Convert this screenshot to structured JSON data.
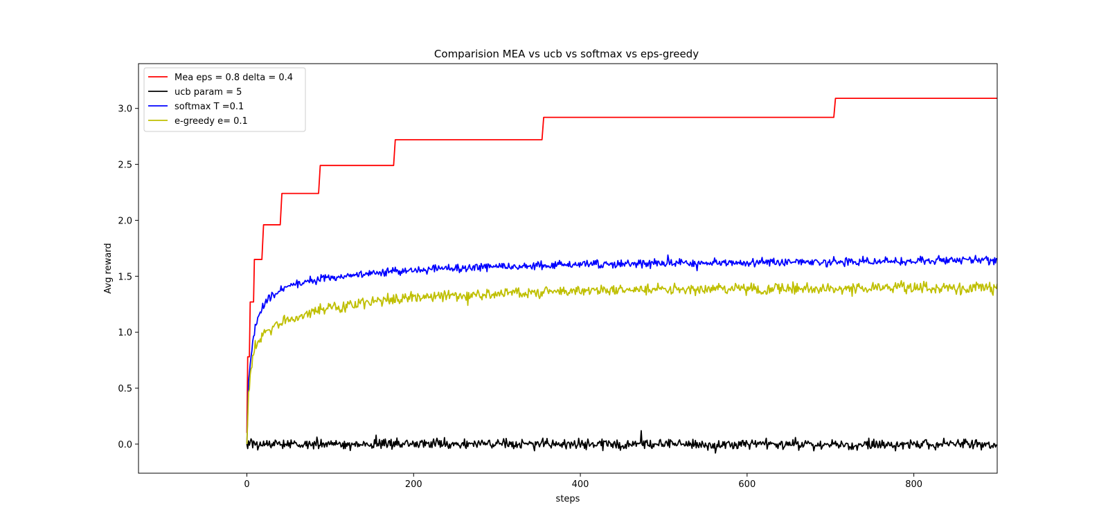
{
  "chart_data": {
    "type": "line",
    "title": "Comparision MEA vs ucb vs softmax vs eps-greedy",
    "xlabel": "steps",
    "ylabel": "Avg reward",
    "xlim": [
      -130,
      900
    ],
    "ylim": [
      -0.26,
      3.4
    ],
    "xticks": [
      0,
      200,
      400,
      600,
      800
    ],
    "xtick_labels": [
      "0",
      "200",
      "400",
      "600",
      "800"
    ],
    "yticks": [
      0.0,
      0.5,
      1.0,
      1.5,
      2.0,
      2.5,
      3.0
    ],
    "ytick_labels": [
      "0.0",
      "0.5",
      "1.0",
      "1.5",
      "2.0",
      "2.5",
      "3.0"
    ],
    "grid": false,
    "legend_position": "top-left",
    "series": [
      {
        "name": "Mea eps = 0.8 delta = 0.4",
        "color": "#ff0000",
        "style": "step",
        "points": [
          [
            0,
            0.1
          ],
          [
            1,
            0.78
          ],
          [
            3,
            0.78
          ],
          [
            4,
            1.27
          ],
          [
            8,
            1.27
          ],
          [
            9,
            1.65
          ],
          [
            18,
            1.65
          ],
          [
            20,
            1.96
          ],
          [
            40,
            1.96
          ],
          [
            42,
            2.24
          ],
          [
            86,
            2.24
          ],
          [
            88,
            2.49
          ],
          [
            176,
            2.49
          ],
          [
            178,
            2.72
          ],
          [
            354,
            2.72
          ],
          [
            356,
            2.92
          ],
          [
            704,
            2.92
          ],
          [
            706,
            3.09
          ],
          [
            900,
            3.09
          ]
        ]
      },
      {
        "name": "ucb param = 5",
        "color": "#000000",
        "style": "noisy",
        "base": [
          [
            0,
            0.0
          ],
          [
            900,
            0.0
          ]
        ],
        "noise": 0.022,
        "spikes": [
          [
            473,
            0.12
          ],
          [
            562,
            -0.08
          ],
          [
            155,
            0.08
          ],
          [
            680,
            -0.06
          ]
        ]
      },
      {
        "name": "softmax T =0.1",
        "color": "#0000ff",
        "style": "noisy",
        "base": [
          [
            0,
            0.0
          ],
          [
            2,
            0.55
          ],
          [
            5,
            0.8
          ],
          [
            10,
            1.05
          ],
          [
            20,
            1.25
          ],
          [
            35,
            1.36
          ],
          [
            50,
            1.41
          ],
          [
            75,
            1.46
          ],
          [
            100,
            1.49
          ],
          [
            150,
            1.53
          ],
          [
            200,
            1.555
          ],
          [
            300,
            1.585
          ],
          [
            400,
            1.605
          ],
          [
            500,
            1.615
          ],
          [
            600,
            1.62
          ],
          [
            700,
            1.63
          ],
          [
            800,
            1.64
          ],
          [
            900,
            1.645
          ]
        ],
        "noise": 0.018,
        "spikes": [
          [
            505,
            1.69
          ],
          [
            830,
            1.685
          ],
          [
            540,
            1.55
          ]
        ]
      },
      {
        "name": "e-greedy e= 0.1",
        "color": "#bfbf00",
        "style": "noisy",
        "base": [
          [
            0,
            0.0
          ],
          [
            2,
            0.45
          ],
          [
            5,
            0.68
          ],
          [
            10,
            0.86
          ],
          [
            20,
            0.98
          ],
          [
            35,
            1.06
          ],
          [
            50,
            1.11
          ],
          [
            75,
            1.17
          ],
          [
            100,
            1.22
          ],
          [
            150,
            1.27
          ],
          [
            200,
            1.31
          ],
          [
            300,
            1.345
          ],
          [
            400,
            1.37
          ],
          [
            500,
            1.38
          ],
          [
            600,
            1.385
          ],
          [
            700,
            1.39
          ],
          [
            800,
            1.395
          ],
          [
            900,
            1.395
          ]
        ],
        "noise": 0.025,
        "spikes": [
          [
            655,
            1.45
          ],
          [
            785,
            1.46
          ],
          [
            265,
            1.24
          ],
          [
            895,
            1.33
          ]
        ]
      }
    ]
  }
}
